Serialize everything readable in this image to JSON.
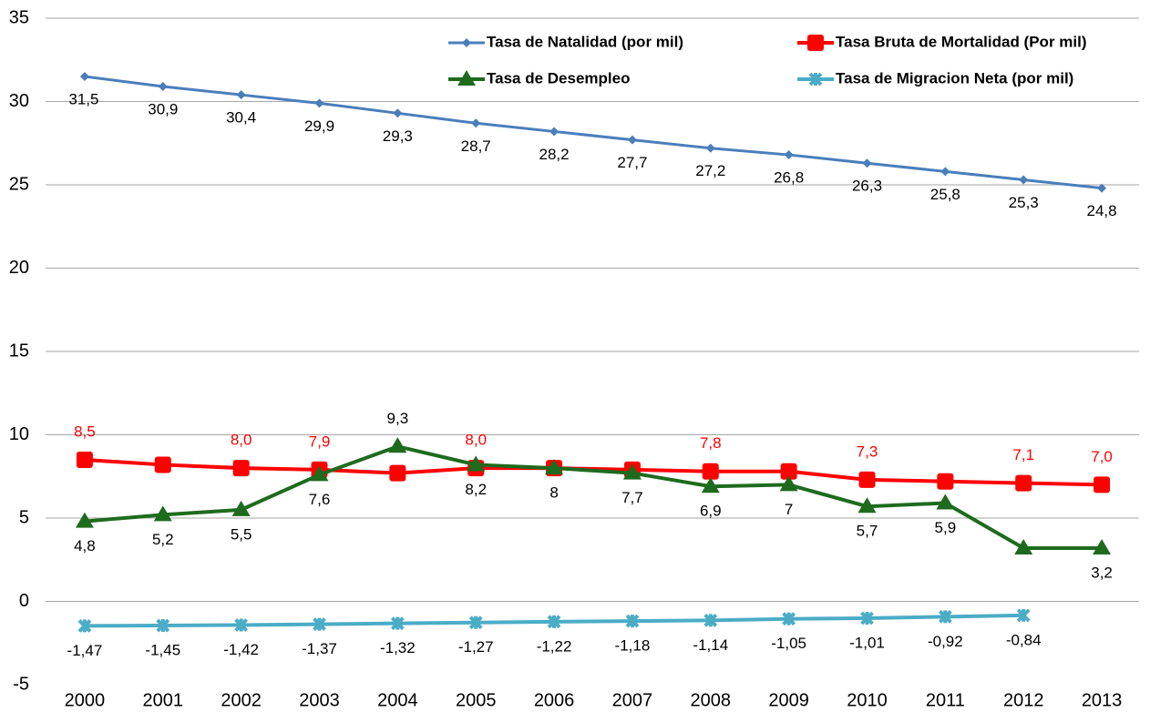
{
  "chart_data": {
    "type": "line",
    "categories": [
      "2000",
      "2001",
      "2002",
      "2003",
      "2004",
      "2005",
      "2006",
      "2007",
      "2008",
      "2009",
      "2010",
      "2011",
      "2012",
      "2013"
    ],
    "ylim": [
      -5,
      35
    ],
    "yticks": [
      -5,
      0,
      5,
      10,
      15,
      20,
      25,
      30,
      35
    ],
    "grid": true,
    "legend": "top-right",
    "series": [
      {
        "name": "Tasa de Natalidad (por mil)",
        "color": "#4a7ebb",
        "marker": "diamond",
        "values": [
          31.5,
          30.9,
          30.4,
          29.9,
          29.3,
          28.7,
          28.2,
          27.7,
          27.2,
          26.8,
          26.3,
          25.8,
          25.3,
          24.8
        ],
        "value_labels": [
          "31,5",
          "30,9",
          "30,4",
          "29,9",
          "29,3",
          "28,7",
          "28,2",
          "27,7",
          "27,2",
          "26,8",
          "26,3",
          "25,8",
          "25,3",
          "24,8"
        ]
      },
      {
        "name": "Tasa Bruta de Mortalidad (Por mil)",
        "color": "#ff0000",
        "marker": "square",
        "values": [
          8.5,
          8.2,
          8.0,
          7.9,
          7.7,
          8.0,
          8.0,
          7.9,
          7.8,
          7.8,
          7.3,
          7.2,
          7.1,
          7.0
        ],
        "value_labels": [
          "8,5",
          null,
          "8,0",
          "7,9",
          null,
          "8,0",
          null,
          null,
          "7,8",
          null,
          "7,3",
          null,
          "7,1",
          "7,0"
        ]
      },
      {
        "name": "Tasa de Desempleo",
        "color": "#1e6b1e",
        "marker": "triangle",
        "values": [
          4.8,
          5.2,
          5.5,
          7.6,
          9.3,
          8.2,
          8,
          7.7,
          6.9,
          7,
          5.7,
          5.9,
          3.2,
          3.2
        ],
        "value_labels": [
          "4,8",
          "5,2",
          "5,5",
          "7,6",
          "9,3",
          "8,2",
          "8",
          "7,7",
          "6,9",
          "7",
          "5,7",
          "5,9",
          null,
          "3,2"
        ]
      },
      {
        "name": "Tasa de Migracion Neta (por mil)",
        "color": "#4bacc6",
        "marker": "cross",
        "values": [
          -1.47,
          -1.45,
          -1.42,
          -1.37,
          -1.32,
          -1.27,
          -1.22,
          -1.18,
          -1.14,
          -1.05,
          -1.01,
          -0.92,
          -0.84,
          null
        ],
        "value_labels": [
          "-1,47",
          "-1,45",
          "-1,42",
          "-1,37",
          "-1,32",
          "-1,27",
          "-1,22",
          "-1,18",
          "-1,14",
          "-1,05",
          "-1,01",
          "-0,92",
          "-0,84",
          null
        ]
      }
    ]
  }
}
